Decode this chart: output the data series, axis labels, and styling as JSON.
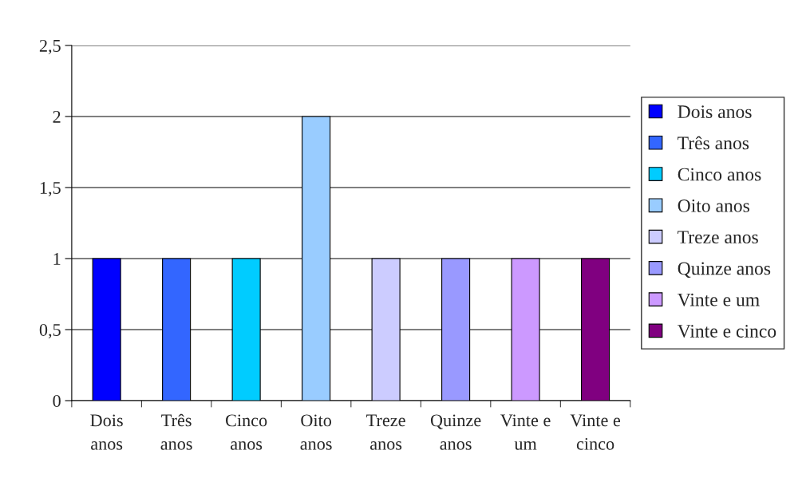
{
  "chart_data": {
    "type": "bar",
    "categories": [
      "Dois anos",
      "Três anos",
      "Cinco anos",
      "Oito anos",
      "Treze anos",
      "Quinze anos",
      "Vinte e um",
      "Vinte e cinco"
    ],
    "series": [
      {
        "name": "Dois anos",
        "color": "#0000ff",
        "values": [
          1,
          null,
          null,
          null,
          null,
          null,
          null,
          null
        ]
      },
      {
        "name": "Três anos",
        "color": "#3366ff",
        "values": [
          null,
          1,
          null,
          null,
          null,
          null,
          null,
          null
        ]
      },
      {
        "name": "Cinco anos",
        "color": "#00ccff",
        "values": [
          null,
          null,
          1,
          null,
          null,
          null,
          null,
          null
        ]
      },
      {
        "name": "Oito anos",
        "color": "#99ccff",
        "values": [
          null,
          null,
          null,
          2,
          null,
          null,
          null,
          null
        ]
      },
      {
        "name": "Treze anos",
        "color": "#ccccff",
        "values": [
          null,
          null,
          null,
          null,
          1,
          null,
          null,
          null
        ]
      },
      {
        "name": "Quinze anos",
        "color": "#9999ff",
        "values": [
          null,
          null,
          null,
          null,
          null,
          1,
          null,
          null
        ]
      },
      {
        "name": "Vinte e um",
        "color": "#cc99ff",
        "values": [
          null,
          null,
          null,
          null,
          null,
          null,
          1,
          null
        ]
      },
      {
        "name": "Vinte e cinco",
        "color": "#800080",
        "values": [
          null,
          null,
          null,
          null,
          null,
          null,
          null,
          1
        ]
      }
    ],
    "ylim": [
      0,
      2.5
    ],
    "yticks": [
      0,
      {
        "value": 0.5,
        "label": "0,5"
      },
      1,
      {
        "value": 1.5,
        "label": "1,5"
      },
      2,
      {
        "value": 2.5,
        "label": "2,5"
      }
    ],
    "grid": "y",
    "legend": "right"
  }
}
